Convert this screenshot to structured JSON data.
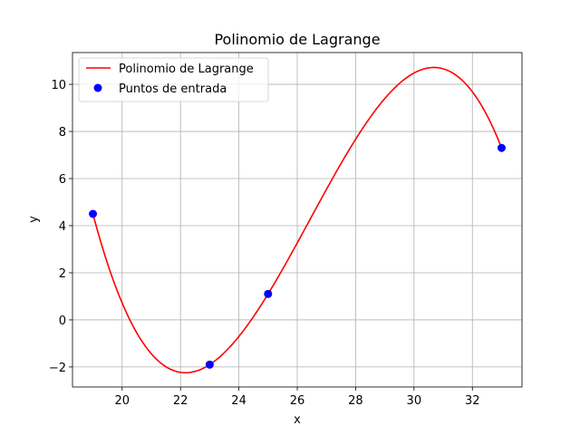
{
  "chart_data": {
    "type": "line",
    "title": "Polinomio de Lagrange",
    "xlabel": "x",
    "ylabel": "y",
    "xlim": [
      18.3,
      33.7
    ],
    "ylim": [
      -2.85,
      11.35
    ],
    "x_ticks": [
      20,
      22,
      24,
      26,
      28,
      30,
      32
    ],
    "y_ticks": [
      -2,
      0,
      2,
      4,
      6,
      8,
      10
    ],
    "grid": true,
    "legend_position": "top-left",
    "series": [
      {
        "name": "Polinomio de Lagrange",
        "kind": "line",
        "color": "#ff0000",
        "formula": "lagrange",
        "x_range": [
          19,
          33
        ]
      },
      {
        "name": "Puntos de entrada",
        "kind": "scatter",
        "color": "#0000ff",
        "points": [
          {
            "x": 19,
            "y": 4.5
          },
          {
            "x": 23,
            "y": -1.9
          },
          {
            "x": 25,
            "y": 1.1
          },
          {
            "x": 33,
            "y": 7.3
          }
        ]
      }
    ]
  }
}
